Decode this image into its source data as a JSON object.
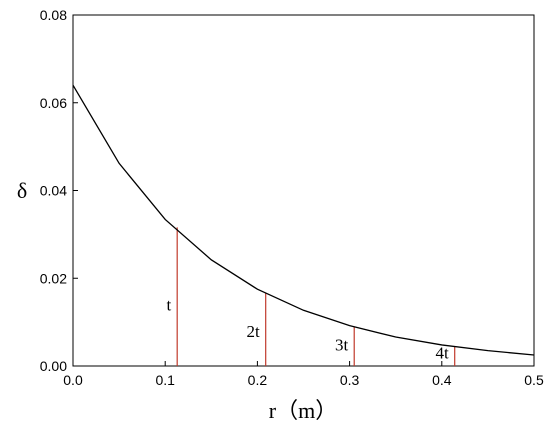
{
  "chart_data": {
    "type": "line",
    "xlabel": "r（m）",
    "ylabel": "δ",
    "xlim": [
      0.0,
      0.5
    ],
    "ylim": [
      0.0,
      0.08
    ],
    "x_ticks": [
      "0.0",
      "0.1",
      "0.2",
      "0.3",
      "0.4",
      "0.5"
    ],
    "y_ticks": [
      "0.00",
      "0.02",
      "0.04",
      "0.06",
      "0.08"
    ],
    "grid": false,
    "legend": "none",
    "series": [
      {
        "color": "#000000",
        "x": [
          0.0,
          0.05,
          0.1,
          0.15,
          0.2,
          0.25,
          0.3,
          0.35,
          0.4,
          0.45,
          0.5
        ],
        "y": [
          0.064,
          0.0462,
          0.0334,
          0.0242,
          0.0175,
          0.0127,
          0.0092,
          0.0066,
          0.0048,
          0.0035,
          0.0025
        ]
      }
    ],
    "annotations": [
      {
        "label": "t",
        "x": 0.113,
        "y": 0.0316
      },
      {
        "label": "2t",
        "x": 0.209,
        "y": 0.0166
      },
      {
        "label": "3t",
        "x": 0.305,
        "y": 0.0089
      },
      {
        "label": "4t",
        "x": 0.414,
        "y": 0.0044
      }
    ],
    "annotation_color": "#c0392b"
  }
}
